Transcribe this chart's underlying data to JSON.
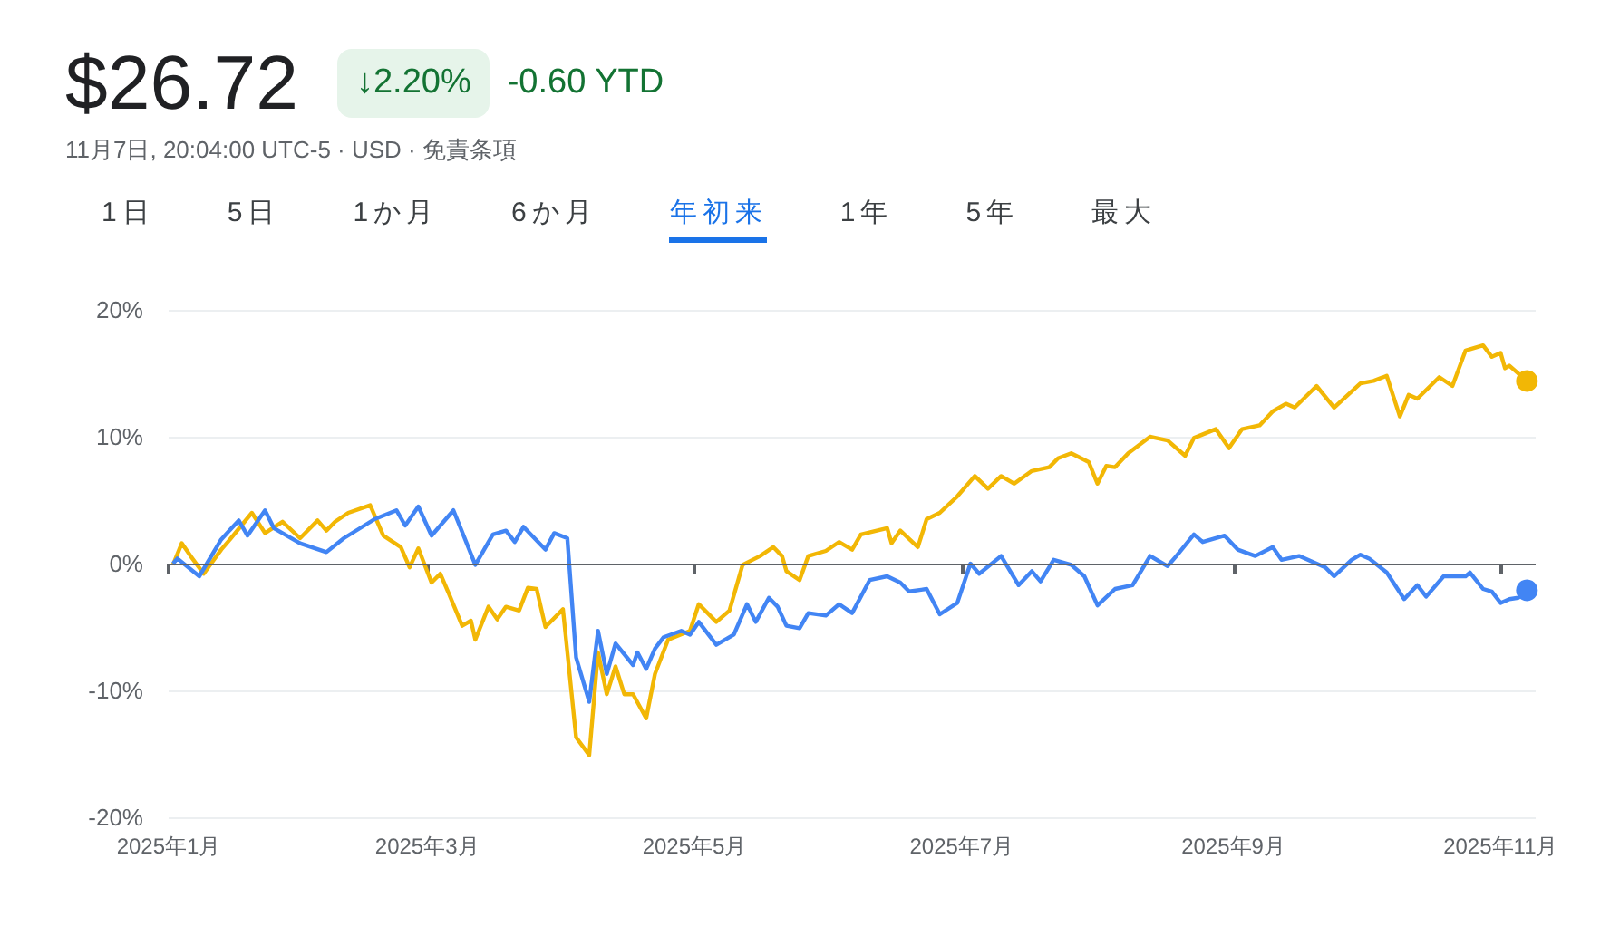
{
  "chart_data": {
    "type": "line",
    "title": "$26.72",
    "subtitle": "11月7日, 20:04:00 UTC-5 · USD · 免責条項",
    "annotations": [
      "↓2.20%",
      "-0.60 YTD",
      "1日",
      "5日",
      "1か月",
      "6か月",
      "年初来",
      "1年",
      "5年",
      "最大"
    ],
    "series": [
      {
        "color": "#f2b705",
        "x": [
          "2025-01-02",
          "2025-01-04",
          "2025-01-06",
          "2025-01-09",
          "2025-01-13",
          "2025-01-15",
          "2025-01-20",
          "2025-01-23",
          "2025-01-27",
          "2025-01-31",
          "2025-02-04",
          "2025-02-06",
          "2025-02-08",
          "2025-02-11",
          "2025-02-16",
          "2025-02-19",
          "2025-02-23",
          "2025-02-25",
          "2025-02-27",
          "2025-03-02",
          "2025-03-04",
          "2025-03-06",
          "2025-03-09",
          "2025-03-11",
          "2025-03-12",
          "2025-03-15",
          "2025-03-17",
          "2025-03-19",
          "2025-03-22",
          "2025-03-24",
          "2025-03-26",
          "2025-03-28",
          "2025-04-01",
          "2025-04-04",
          "2025-04-07",
          "2025-04-09",
          "2025-04-11",
          "2025-04-13",
          "2025-04-15",
          "2025-04-17",
          "2025-04-20",
          "2025-04-22",
          "2025-04-25",
          "2025-04-30",
          "2025-05-02",
          "2025-05-06",
          "2025-05-09",
          "2025-05-12",
          "2025-05-16",
          "2025-05-19",
          "2025-05-21",
          "2025-05-22",
          "2025-05-25",
          "2025-05-27",
          "2025-05-31",
          "2025-06-03",
          "2025-06-06",
          "2025-06-08",
          "2025-06-14",
          "2025-06-15",
          "2025-06-17",
          "2025-06-21",
          "2025-06-23",
          "2025-06-26",
          "2025-06-30",
          "2025-07-04",
          "2025-07-07",
          "2025-07-10",
          "2025-07-13",
          "2025-07-17",
          "2025-07-21",
          "2025-07-23",
          "2025-07-26",
          "2025-07-30",
          "2025-08-01",
          "2025-08-03",
          "2025-08-05",
          "2025-08-08",
          "2025-08-13",
          "2025-08-17",
          "2025-08-21",
          "2025-08-23",
          "2025-08-28",
          "2025-08-31",
          "2025-09-03",
          "2025-09-07",
          "2025-09-10",
          "2025-09-13",
          "2025-09-15",
          "2025-09-20",
          "2025-09-24",
          "2025-09-30",
          "2025-10-03",
          "2025-10-06",
          "2025-10-09",
          "2025-10-11",
          "2025-10-13",
          "2025-10-18",
          "2025-10-21",
          "2025-10-24",
          "2025-10-28",
          "2025-10-30",
          "2025-11-01",
          "2025-11-02",
          "2025-11-03",
          "2025-11-07"
        ],
        "values": [
          -0.1,
          1.6,
          0.6,
          -0.8,
          1.1,
          1.9,
          4.0,
          2.4,
          3.3,
          2.0,
          3.4,
          2.6,
          3.3,
          4.0,
          4.6,
          2.2,
          1.3,
          -0.3,
          1.2,
          -1.5,
          -0.8,
          -2.4,
          -4.9,
          -4.5,
          -6.0,
          -3.4,
          -4.4,
          -3.4,
          -3.7,
          -1.9,
          -2.0,
          -5.0,
          -3.6,
          -13.7,
          -15.1,
          -7.0,
          -10.3,
          -8.1,
          -10.3,
          -10.3,
          -12.2,
          -8.7,
          -6.0,
          -5.3,
          -3.2,
          -4.6,
          -3.7,
          -0.1,
          0.6,
          1.3,
          0.6,
          -0.6,
          -1.3,
          0.6,
          1.0,
          1.7,
          1.1,
          2.3,
          2.8,
          1.6,
          2.6,
          1.3,
          3.5,
          4.0,
          5.3,
          6.9,
          5.9,
          6.9,
          6.3,
          7.3,
          7.6,
          8.3,
          8.7,
          8.0,
          6.3,
          7.7,
          7.6,
          8.7,
          10.0,
          9.7,
          8.5,
          9.9,
          10.6,
          9.1,
          10.6,
          10.9,
          12.0,
          12.6,
          12.3,
          14.0,
          12.3,
          14.2,
          14.4,
          14.8,
          11.6,
          13.3,
          13.0,
          14.7,
          14.0,
          16.8,
          17.2,
          16.3,
          16.6,
          15.4,
          15.6,
          14.4
        ]
      },
      {
        "color": "#4285f4",
        "x": [
          "2025-01-02",
          "2025-01-03",
          "2025-01-08",
          "2025-01-13",
          "2025-01-17",
          "2025-01-19",
          "2025-01-23",
          "2025-01-25",
          "2025-01-31",
          "2025-02-06",
          "2025-02-10",
          "2025-02-17",
          "2025-02-22",
          "2025-02-24",
          "2025-02-27",
          "2025-03-02",
          "2025-03-07",
          "2025-03-12",
          "2025-03-16",
          "2025-03-19",
          "2025-03-21",
          "2025-03-23",
          "2025-03-28",
          "2025-03-30",
          "2025-04-02",
          "2025-04-04",
          "2025-04-07",
          "2025-04-09",
          "2025-04-11",
          "2025-04-13",
          "2025-04-17",
          "2025-04-18",
          "2025-04-20",
          "2025-04-22",
          "2025-04-24",
          "2025-04-28",
          "2025-04-30",
          "2025-05-02",
          "2025-05-06",
          "2025-05-10",
          "2025-05-13",
          "2025-05-15",
          "2025-05-18",
          "2025-05-20",
          "2025-05-22",
          "2025-05-25",
          "2025-05-27",
          "2025-05-31",
          "2025-06-03",
          "2025-06-06",
          "2025-06-10",
          "2025-06-14",
          "2025-06-17",
          "2025-06-19",
          "2025-06-23",
          "2025-06-26",
          "2025-06-30",
          "2025-07-03",
          "2025-07-05",
          "2025-07-10",
          "2025-07-14",
          "2025-07-17",
          "2025-07-19",
          "2025-07-22",
          "2025-07-26",
          "2025-07-29",
          "2025-08-01",
          "2025-08-05",
          "2025-08-09",
          "2025-08-13",
          "2025-08-17",
          "2025-08-19",
          "2025-08-23",
          "2025-08-25",
          "2025-08-30",
          "2025-09-02",
          "2025-09-06",
          "2025-09-10",
          "2025-09-12",
          "2025-09-16",
          "2025-09-22",
          "2025-09-24",
          "2025-09-28",
          "2025-09-30",
          "2025-10-02",
          "2025-10-06",
          "2025-10-10",
          "2025-10-13",
          "2025-10-15",
          "2025-10-19",
          "2025-10-24",
          "2025-10-25",
          "2025-10-28",
          "2025-10-30",
          "2025-11-01",
          "2025-11-03",
          "2025-11-05",
          "2025-11-07"
        ],
        "values": [
          0.0,
          0.4,
          -1.0,
          1.9,
          3.4,
          2.2,
          4.2,
          2.8,
          1.6,
          0.9,
          2.0,
          3.5,
          4.2,
          3.0,
          4.5,
          2.2,
          4.2,
          -0.1,
          2.3,
          2.6,
          1.7,
          2.9,
          1.1,
          2.4,
          2.0,
          -7.4,
          -10.9,
          -5.3,
          -8.7,
          -6.3,
          -8.0,
          -7.0,
          -8.3,
          -6.7,
          -5.8,
          -5.3,
          -5.6,
          -4.6,
          -6.4,
          -5.6,
          -3.2,
          -4.6,
          -2.7,
          -3.4,
          -4.9,
          -5.1,
          -3.9,
          -4.1,
          -3.2,
          -3.9,
          -1.3,
          -1.0,
          -1.5,
          -2.2,
          -2.0,
          -4.0,
          -3.1,
          0.0,
          -0.8,
          0.6,
          -1.7,
          -0.6,
          -1.4,
          0.3,
          -0.1,
          -1.0,
          -3.3,
          -2.0,
          -1.7,
          0.6,
          -0.2,
          0.6,
          2.3,
          1.7,
          2.2,
          1.1,
          0.6,
          1.3,
          0.3,
          0.6,
          -0.3,
          -1.0,
          0.3,
          0.7,
          0.4,
          -0.7,
          -2.8,
          -1.7,
          -2.6,
          -1.0,
          -1.0,
          -0.7,
          -2.0,
          -2.2,
          -3.1,
          -2.8,
          -2.7,
          -2.1
        ]
      }
    ],
    "xlim": [
      "2025-01-01",
      "2025-11-09"
    ],
    "xticks": [
      {
        "value": "2025-01-01",
        "label": "2025年1月"
      },
      {
        "value": "2025-03-01",
        "label": "2025年3月"
      },
      {
        "value": "2025-05-01",
        "label": "2025年5月"
      },
      {
        "value": "2025-07-01",
        "label": "2025年7月"
      },
      {
        "value": "2025-09-01",
        "label": "2025年9月"
      },
      {
        "value": "2025-11-01",
        "label": "2025年11月"
      }
    ],
    "ylim": [
      -20,
      20
    ],
    "yticks": [
      {
        "value": -20,
        "label": "-20%"
      },
      {
        "value": -10,
        "label": "-10%"
      },
      {
        "value": 0,
        "label": "0%"
      },
      {
        "value": 10,
        "label": "10%"
      },
      {
        "value": 20,
        "label": "20%"
      }
    ],
    "grid": "y",
    "ref_lines": [
      {
        "axis": "y",
        "value": 0,
        "color": "#5f6368"
      }
    ]
  }
}
